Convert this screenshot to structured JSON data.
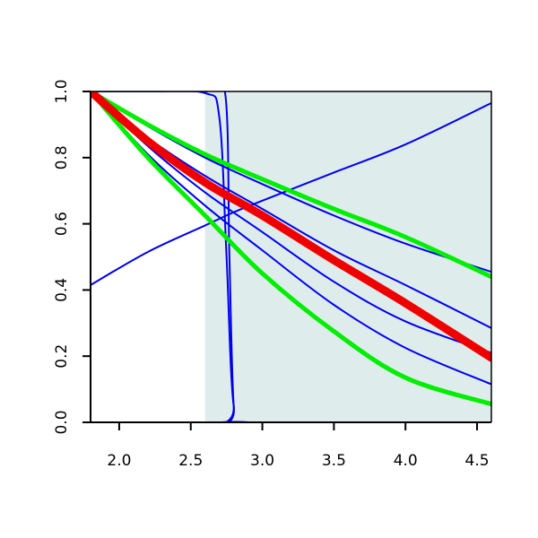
{
  "chart_data": {
    "type": "line",
    "title": "",
    "xlabel": "",
    "ylabel": "",
    "xlim": [
      1.8,
      4.6
    ],
    "ylim": [
      0.0,
      1.0
    ],
    "x_ticks": [
      "2.0",
      "2.5",
      "3.0",
      "3.5",
      "4.0",
      "4.5"
    ],
    "y_ticks": [
      "0.0",
      "0.2",
      "0.4",
      "0.6",
      "0.8",
      "1.0"
    ],
    "grid": false,
    "legend": "none",
    "shaded_region": {
      "x_from": 2.6,
      "x_to": 4.6,
      "color": "#dfecec"
    },
    "colors": {
      "blue": "#0000ee",
      "green": "#00ee00",
      "red": "#ee0000",
      "axis": "#000000"
    },
    "series": [
      {
        "color": "#0000ee",
        "width": 2,
        "x": [
          1.8,
          2.2,
          2.6,
          2.8,
          3.0,
          3.5,
          4.0,
          4.6
        ],
        "y": [
          0.415,
          0.515,
          0.595,
          0.635,
          0.67,
          0.755,
          0.84,
          0.965
        ]
      },
      {
        "color": "#0000ee",
        "width": 2,
        "x": [
          1.8,
          2.2,
          2.6,
          2.7,
          2.75,
          2.8,
          2.9,
          4.6
        ],
        "y": [
          1.0,
          1.0,
          0.995,
          0.92,
          0.5,
          0.05,
          0.0,
          0.0
        ]
      },
      {
        "color": "#0000ee",
        "width": 2,
        "x": [
          1.8,
          2.2,
          2.6,
          2.74,
          2.77,
          2.8,
          2.85,
          4.6
        ],
        "y": [
          1.0,
          1.0,
          1.0,
          0.995,
          0.5,
          0.05,
          0.0,
          0.0
        ]
      },
      {
        "color": "#0000ee",
        "width": 2,
        "x": [
          1.8,
          2.2,
          2.6,
          3.0,
          3.5,
          4.0,
          4.6
        ],
        "y": [
          1.0,
          0.895,
          0.8,
          0.72,
          0.625,
          0.54,
          0.455
        ]
      },
      {
        "color": "#0000ee",
        "width": 2,
        "x": [
          1.8,
          2.2,
          2.6,
          3.0,
          3.5,
          4.0,
          4.6
        ],
        "y": [
          1.0,
          0.86,
          0.745,
          0.645,
          0.52,
          0.415,
          0.285
        ]
      },
      {
        "color": "#0000ee",
        "width": 2,
        "x": [
          1.8,
          2.2,
          2.6,
          3.0,
          3.5,
          4.0,
          4.6
        ],
        "y": [
          1.0,
          0.835,
          0.695,
          0.575,
          0.425,
          0.305,
          0.21
        ]
      },
      {
        "color": "#0000ee",
        "width": 2,
        "x": [
          1.8,
          2.2,
          2.6,
          3.0,
          3.5,
          4.0,
          4.6
        ],
        "y": [
          1.0,
          0.81,
          0.655,
          0.52,
          0.355,
          0.225,
          0.115
        ]
      },
      {
        "color": "#00ee00",
        "width": 5,
        "x": [
          1.8,
          2.2,
          2.6,
          3.0,
          3.5,
          4.0,
          4.6
        ],
        "y": [
          1.0,
          0.9,
          0.81,
          0.735,
          0.645,
          0.56,
          0.44
        ]
      },
      {
        "color": "#00ee00",
        "width": 5,
        "x": [
          1.8,
          2.2,
          2.6,
          3.0,
          3.5,
          4.0,
          4.6
        ],
        "y": [
          1.0,
          0.8,
          0.625,
          0.45,
          0.275,
          0.135,
          0.055
        ]
      },
      {
        "color": "#ee0000",
        "width": 9,
        "x": [
          1.8,
          2.2,
          2.6,
          3.0,
          3.5,
          4.0,
          4.6
        ],
        "y": [
          1.0,
          0.85,
          0.725,
          0.625,
          0.49,
          0.36,
          0.195
        ]
      }
    ]
  }
}
